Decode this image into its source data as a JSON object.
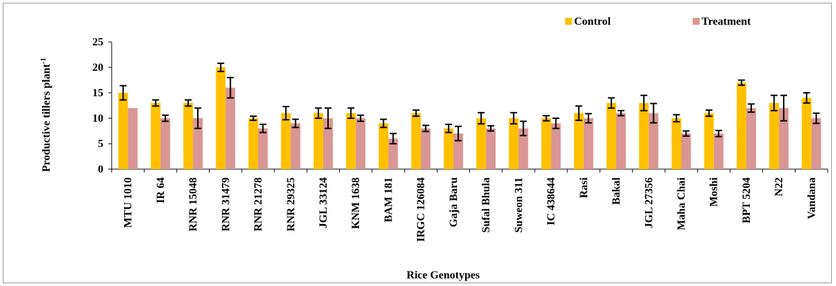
{
  "chart_data": {
    "type": "bar",
    "title": "",
    "xlabel": "Rice Genotypes",
    "ylabel": "Productive tillers plant",
    "ylabel_superscript": "-1",
    "ylim": [
      0,
      25
    ],
    "yticks": [
      0,
      5,
      10,
      15,
      20,
      25
    ],
    "grid": false,
    "legend_position": "top-right",
    "error_bars": true,
    "categories": [
      "MTU 1010",
      "IR 64",
      "RNR 15048",
      "RNR 31479",
      "RNR 21278",
      "RNR 29325",
      "JGL 33124",
      "KNM 1638",
      "BAM 181",
      "IRGC 126084",
      "Gaja Baru",
      "Sufal Bhula",
      "Suweon 311",
      "IC 438644",
      "Rasi",
      "Bakal",
      "JGL 27356",
      "Maha Chai",
      "Moshi",
      "BPT 5204",
      "N22",
      "Vandana"
    ],
    "series": [
      {
        "name": "Control",
        "color": "#FFC000",
        "values": [
          15,
          13,
          13,
          20,
          10,
          11,
          11,
          11,
          9,
          11,
          8,
          10,
          10,
          10,
          11,
          13,
          13,
          10,
          11,
          17,
          13,
          14
        ],
        "errors": [
          1.4,
          0.6,
          0.6,
          0.8,
          0.4,
          1.3,
          1.0,
          1.0,
          0.8,
          0.6,
          0.8,
          1.1,
          1.1,
          0.5,
          1.4,
          1.0,
          1.5,
          0.7,
          0.6,
          0.5,
          1.5,
          1.0
        ]
      },
      {
        "name": "Treatment",
        "color": "#D99694",
        "values": [
          12,
          10,
          10,
          16,
          8,
          9,
          10,
          10,
          6,
          8,
          7,
          8,
          8,
          9,
          10,
          11,
          11,
          7,
          7,
          12,
          12,
          10
        ],
        "errors": [
          0,
          0.6,
          2.0,
          2.0,
          0.8,
          0.8,
          2.0,
          0.6,
          1.0,
          0.6,
          1.4,
          0.5,
          1.4,
          1.0,
          0.9,
          0.5,
          1.9,
          0.5,
          0.6,
          0.8,
          2.5,
          1.0
        ]
      }
    ]
  }
}
